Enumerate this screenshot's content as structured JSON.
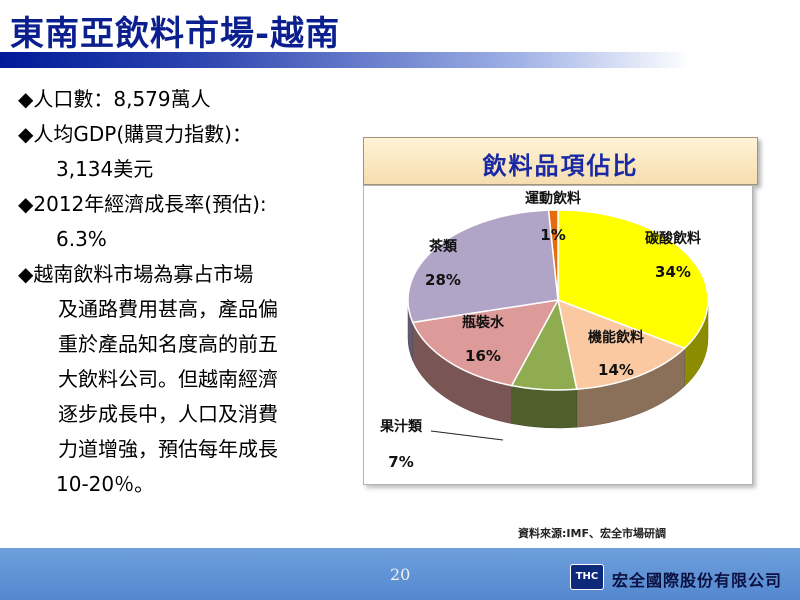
{
  "slide": {
    "title": "東南亞飲料市場-越南",
    "page_number": "20",
    "source_note": "資料來源:IMF、宏全市場研調",
    "company_name": "宏全國際股份有限公司",
    "logo_text": "THC"
  },
  "bullets": [
    {
      "lines": [
        "◆人口數：8,579萬人"
      ]
    },
    {
      "lines": [
        "◆人均GDP(購買力指數)：",
        "3,134美元"
      ]
    },
    {
      "lines": [
        "◆2012年經濟成長率(預估):",
        "6.3%"
      ]
    },
    {
      "lines": [
        "◆越南飲料市場為寡占市場",
        "及通路費用甚高，產品偏",
        "重於產品知名度高的前五",
        "大飲料公司。但越南經濟",
        "逐步成長中，人口及消費",
        "力道增強，預估每年成長",
        "10-20％。"
      ]
    }
  ],
  "chart_header": "飲料品項佔比",
  "chart_data": {
    "type": "pie",
    "title": "飲料品項佔比",
    "slices": [
      {
        "label": "碳酸飲料",
        "value": 34,
        "value_label": "34%",
        "color": "#ffff00"
      },
      {
        "label": "機能飲料",
        "value": 14,
        "value_label": "14%",
        "color": "#fac9a1"
      },
      {
        "label": "果汁類",
        "value": 7,
        "value_label": "7%",
        "color": "#8fad50"
      },
      {
        "label": "瓶裝水",
        "value": 16,
        "value_label": "16%",
        "color": "#dc9a98"
      },
      {
        "label": "茶類",
        "value": 28,
        "value_label": "28%",
        "color": "#b1a5c7"
      },
      {
        "label": "運動飲料",
        "value": 1,
        "value_label": "1%",
        "color": "#e46c0a"
      }
    ]
  }
}
